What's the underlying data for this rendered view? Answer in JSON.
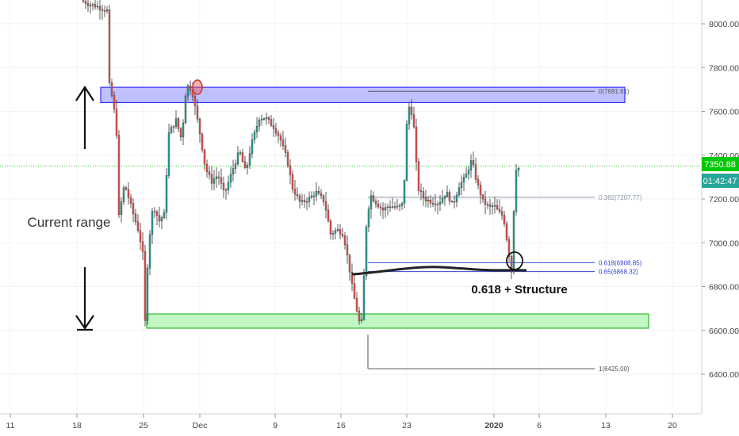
{
  "chart_data": {
    "type": "candlestick",
    "timeframe_note": "",
    "x_ticks": [
      "11",
      "18",
      "25",
      "Dec",
      "9",
      "16",
      "23",
      "2020",
      "6",
      "13",
      "20"
    ],
    "y_ticks": [
      "6400.00",
      "6600.00",
      "6800.00",
      "7000.00",
      "7200.00",
      "7400.00",
      "7600.00",
      "7800.00",
      "8000.00"
    ],
    "y_tick_values": [
      6400,
      6600,
      6800,
      7000,
      7200,
      7400,
      7600,
      7800,
      8000
    ],
    "ylim": [
      6125,
      8120
    ],
    "current_price": {
      "value": 7350.88,
      "label": "7350.88",
      "color": "#00c805"
    },
    "countdown": {
      "label": "01:42:47",
      "color": "#26a69a"
    },
    "bull_color": "#26a69a",
    "bear_color": "#ef5350",
    "zones": [
      {
        "name": "resistance",
        "low": 7640,
        "high": 7710,
        "fill": "#8c8cff",
        "stroke": "#2e2eff"
      },
      {
        "name": "support",
        "low": 6610,
        "high": 6675,
        "fill": "#90ee90",
        "stroke": "#2db82d"
      }
    ],
    "fib_levels": [
      {
        "label": "0(7691.61)",
        "value": 7691.61
      },
      {
        "label": "0.382(7207.77)",
        "value": 7207.77
      },
      {
        "label": "0.618(6908.85)",
        "value": 6908.85
      },
      {
        "label": "0.65(6868.32)",
        "value": 6868.32
      },
      {
        "label": "1(6425.00)",
        "value": 6425.0
      }
    ],
    "annotations": [
      {
        "text": "Current range"
      },
      {
        "text": "0.618 + Structure"
      }
    ]
  }
}
